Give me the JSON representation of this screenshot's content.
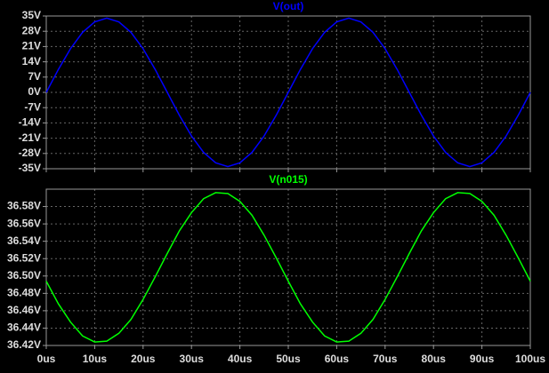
{
  "chart_data": [
    {
      "type": "line",
      "x": [
        0,
        2.5,
        5,
        7.5,
        10,
        12.5,
        15,
        17.5,
        20,
        22.5,
        25,
        27.5,
        30,
        32.5,
        35,
        37.5,
        40,
        42.5,
        45,
        47.5,
        50,
        52.5,
        55,
        57.5,
        60,
        62.5,
        65,
        67.5,
        70,
        72.5,
        75,
        77.5,
        80,
        82.5,
        85,
        87.5,
        90,
        92.5,
        95,
        97.5,
        100
      ],
      "series": [
        {
          "name": "V(out)",
          "color": "#0000ff",
          "values": [
            0,
            10.5,
            20.0,
            27.5,
            32.3,
            34,
            32.3,
            27.5,
            20.0,
            10.5,
            0,
            -10.5,
            -20.0,
            -27.5,
            -32.3,
            -34,
            -32.3,
            -27.5,
            -20.0,
            -10.5,
            0,
            10.5,
            20.0,
            27.5,
            32.3,
            34,
            32.3,
            27.5,
            20.0,
            10.5,
            0,
            -10.5,
            -20.0,
            -27.5,
            -32.3,
            -34,
            -32.3,
            -27.5,
            -20.0,
            -10.5,
            0
          ]
        }
      ],
      "xlim": [
        0,
        100
      ],
      "xticks": [
        0,
        10,
        20,
        30,
        40,
        50,
        60,
        70,
        80,
        90,
        100
      ],
      "ylim": [
        -35,
        35
      ],
      "yticks": [
        {
          "value": 35,
          "label": "35V"
        },
        {
          "value": 28,
          "label": "28V"
        },
        {
          "value": 21,
          "label": "21V"
        },
        {
          "value": 14,
          "label": "14V"
        },
        {
          "value": 7,
          "label": "7V"
        },
        {
          "value": 0,
          "label": "0V"
        },
        {
          "value": -7,
          "label": "-7V"
        },
        {
          "value": -14,
          "label": "-14V"
        },
        {
          "value": -21,
          "label": "-21V"
        },
        {
          "value": -28,
          "label": "-28V"
        },
        {
          "value": -35,
          "label": "-35V"
        }
      ],
      "grid": true
    },
    {
      "type": "line",
      "x": [
        0,
        2.5,
        5,
        7.5,
        10,
        12.5,
        15,
        17.5,
        20,
        22.5,
        25,
        27.5,
        30,
        32.5,
        35,
        37.5,
        40,
        42.5,
        45,
        47.5,
        50,
        52.5,
        55,
        57.5,
        60,
        62.5,
        65,
        67.5,
        70,
        72.5,
        75,
        77.5,
        80,
        82.5,
        85,
        87.5,
        90,
        92.5,
        95,
        97.5,
        100
      ],
      "series": [
        {
          "name": "V(n015)",
          "color": "#00ff00",
          "values": [
            36.494,
            36.468,
            36.447,
            36.431,
            36.424,
            36.425,
            36.434,
            36.45,
            36.473,
            36.499,
            36.526,
            36.552,
            36.573,
            36.589,
            36.596,
            36.595,
            36.586,
            36.57,
            36.547,
            36.521,
            36.494,
            36.468,
            36.447,
            36.431,
            36.424,
            36.425,
            36.434,
            36.45,
            36.473,
            36.499,
            36.526,
            36.552,
            36.573,
            36.589,
            36.596,
            36.595,
            36.586,
            36.57,
            36.547,
            36.521,
            36.494
          ]
        }
      ],
      "xlim": [
        0,
        100
      ],
      "xticks": [
        {
          "value": 0,
          "label": "0us"
        },
        {
          "value": 10,
          "label": "10us"
        },
        {
          "value": 20,
          "label": "20us"
        },
        {
          "value": 30,
          "label": "30us"
        },
        {
          "value": 40,
          "label": "40us"
        },
        {
          "value": 50,
          "label": "50us"
        },
        {
          "value": 60,
          "label": "60us"
        },
        {
          "value": 70,
          "label": "70us"
        },
        {
          "value": 80,
          "label": "80us"
        },
        {
          "value": 90,
          "label": "90us"
        },
        {
          "value": 100,
          "label": "100us"
        }
      ],
      "ylim": [
        36.42,
        36.6
      ],
      "yticks": [
        {
          "value": 36.42,
          "label": "36.42V"
        },
        {
          "value": 36.44,
          "label": "36.44V"
        },
        {
          "value": 36.46,
          "label": "36.46V"
        },
        {
          "value": 36.48,
          "label": "36.48V"
        },
        {
          "value": 36.5,
          "label": "36.50V"
        },
        {
          "value": 36.52,
          "label": "36.52V"
        },
        {
          "value": 36.54,
          "label": "36.54V"
        },
        {
          "value": 36.56,
          "label": "36.56V"
        },
        {
          "value": 36.58,
          "label": "36.58V"
        }
      ],
      "grid": true
    }
  ]
}
